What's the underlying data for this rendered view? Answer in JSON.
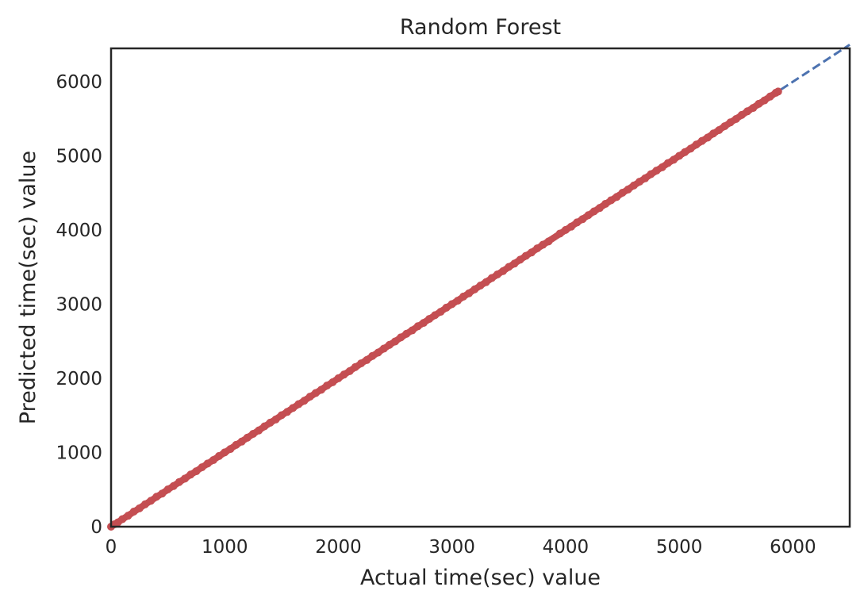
{
  "chart_data": {
    "type": "scatter",
    "title": "Random Forest",
    "xlabel": "Actual time(sec) value",
    "ylabel": "Predicted time(sec) value",
    "xlim": [
      0,
      6500
    ],
    "ylim": [
      0,
      6450
    ],
    "xticks": [
      "0",
      "1000",
      "2000",
      "3000",
      "4000",
      "5000",
      "6000"
    ],
    "yticks": [
      "0",
      "1000",
      "2000",
      "3000",
      "4000",
      "5000",
      "6000"
    ],
    "grid": false,
    "series": [
      {
        "kind": "points",
        "color": "#c44e52",
        "x_range": [
          0,
          5870
        ],
        "points": [
          [
            0,
            0
          ],
          [
            30,
            32
          ],
          [
            60,
            58
          ],
          [
            100,
            102
          ],
          [
            150,
            148
          ],
          [
            200,
            203
          ],
          [
            250,
            248
          ],
          [
            300,
            302
          ],
          [
            350,
            349
          ],
          [
            400,
            404
          ],
          [
            450,
            447
          ],
          [
            500,
            503
          ],
          [
            550,
            548
          ],
          [
            600,
            602
          ],
          [
            650,
            649
          ],
          [
            700,
            703
          ],
          [
            750,
            748
          ],
          [
            800,
            801
          ],
          [
            850,
            852
          ],
          [
            900,
            898
          ],
          [
            950,
            953
          ],
          [
            1000,
            1002
          ],
          [
            1050,
            1047
          ],
          [
            1100,
            1103
          ],
          [
            1150,
            1148
          ],
          [
            1200,
            1201
          ],
          [
            1250,
            1252
          ],
          [
            1300,
            1298
          ],
          [
            1350,
            1353
          ],
          [
            1400,
            1402
          ],
          [
            1450,
            1447
          ],
          [
            1500,
            1503
          ],
          [
            1550,
            1548
          ],
          [
            1600,
            1601
          ],
          [
            1650,
            1652
          ],
          [
            1700,
            1698
          ],
          [
            1750,
            1753
          ],
          [
            1800,
            1802
          ],
          [
            1850,
            1847
          ],
          [
            1900,
            1903
          ],
          [
            1950,
            1948
          ],
          [
            2000,
            2001
          ],
          [
            2050,
            2052
          ],
          [
            2100,
            2098
          ],
          [
            2150,
            2153
          ],
          [
            2200,
            2202
          ],
          [
            2250,
            2247
          ],
          [
            2300,
            2303
          ],
          [
            2350,
            2348
          ],
          [
            2400,
            2401
          ],
          [
            2450,
            2452
          ],
          [
            2500,
            2498
          ],
          [
            2550,
            2553
          ],
          [
            2600,
            2602
          ],
          [
            2650,
            2647
          ],
          [
            2700,
            2703
          ],
          [
            2750,
            2748
          ],
          [
            2800,
            2801
          ],
          [
            2850,
            2852
          ],
          [
            2900,
            2898
          ],
          [
            2950,
            2953
          ],
          [
            3000,
            3002
          ],
          [
            3050,
            3047
          ],
          [
            3100,
            3103
          ],
          [
            3150,
            3148
          ],
          [
            3200,
            3201
          ],
          [
            3250,
            3252
          ],
          [
            3300,
            3298
          ],
          [
            3350,
            3353
          ],
          [
            3400,
            3402
          ],
          [
            3450,
            3447
          ],
          [
            3500,
            3503
          ],
          [
            3550,
            3548
          ],
          [
            3600,
            3601
          ],
          [
            3650,
            3652
          ],
          [
            3700,
            3698
          ],
          [
            3750,
            3753
          ],
          [
            3800,
            3802
          ],
          [
            3850,
            3847
          ],
          [
            3950,
            3953
          ],
          [
            4000,
            4002
          ],
          [
            4050,
            4047
          ],
          [
            4100,
            4103
          ],
          [
            4150,
            4148
          ],
          [
            4200,
            4201
          ],
          [
            4250,
            4252
          ],
          [
            4300,
            4298
          ],
          [
            4350,
            4353
          ],
          [
            4400,
            4402
          ],
          [
            4450,
            4447
          ],
          [
            4500,
            4503
          ],
          [
            4550,
            4548
          ],
          [
            4600,
            4601
          ],
          [
            4650,
            4652
          ],
          [
            4700,
            4698
          ],
          [
            4750,
            4753
          ],
          [
            4800,
            4802
          ],
          [
            4850,
            4847
          ],
          [
            4900,
            4903
          ],
          [
            4950,
            4948
          ],
          [
            5000,
            5001
          ],
          [
            5050,
            5052
          ],
          [
            5100,
            5098
          ],
          [
            5150,
            5153
          ],
          [
            5200,
            5202
          ],
          [
            5250,
            5247
          ],
          [
            5300,
            5303
          ],
          [
            5350,
            5348
          ],
          [
            5400,
            5401
          ],
          [
            5450,
            5452
          ],
          [
            5500,
            5498
          ],
          [
            5550,
            5553
          ],
          [
            5600,
            5602
          ],
          [
            5650,
            5647
          ],
          [
            5700,
            5703
          ],
          [
            5750,
            5748
          ],
          [
            5800,
            5801
          ],
          [
            5850,
            5852
          ],
          [
            5870,
            5868
          ]
        ]
      },
      {
        "kind": "reference-line",
        "style": "dashed",
        "color": "#4c72b0",
        "from": [
          0,
          0
        ],
        "to": [
          6500,
          6500
        ]
      }
    ]
  }
}
